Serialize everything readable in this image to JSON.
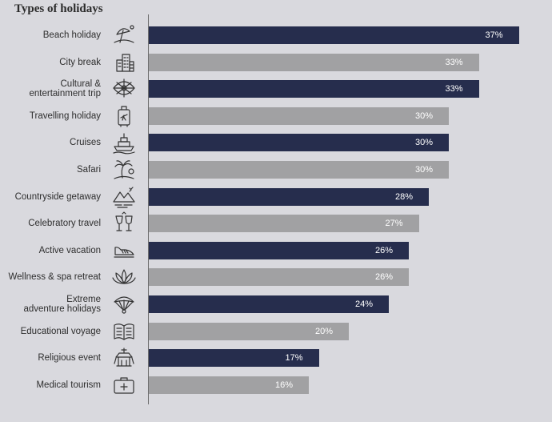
{
  "chart_data": {
    "type": "bar",
    "orientation": "horizontal",
    "title": "Types of holidays",
    "xlim": [
      0,
      40
    ],
    "grid": false,
    "legend": "none",
    "colors": {
      "dark": "#262d4d",
      "light": "#a1a1a3"
    },
    "categories": [
      {
        "label": "Beach holiday",
        "value": 37,
        "value_label": "37%",
        "shade": "dark",
        "icon": "beach-umbrella-icon"
      },
      {
        "label": "City break",
        "value": 33,
        "value_label": "33%",
        "shade": "light",
        "icon": "city-buildings-icon"
      },
      {
        "label": "Cultural &\nentertainment trip",
        "value": 33,
        "value_label": "33%",
        "shade": "dark",
        "icon": "fan-icon"
      },
      {
        "label": "Travelling holiday",
        "value": 30,
        "value_label": "30%",
        "shade": "light",
        "icon": "suitcase-icon"
      },
      {
        "label": "Cruises",
        "value": 30,
        "value_label": "30%",
        "shade": "dark",
        "icon": "cruise-ship-icon"
      },
      {
        "label": "Safari",
        "value": 30,
        "value_label": "30%",
        "shade": "light",
        "icon": "palm-tree-icon"
      },
      {
        "label": "Countryside getaway",
        "value": 28,
        "value_label": "28%",
        "shade": "dark",
        "icon": "mountains-icon"
      },
      {
        "label": "Celebratory travel",
        "value": 27,
        "value_label": "27%",
        "shade": "light",
        "icon": "champagne-glasses-icon"
      },
      {
        "label": "Active vacation",
        "value": 26,
        "value_label": "26%",
        "shade": "dark",
        "icon": "sneaker-icon"
      },
      {
        "label": "Wellness & spa retreat",
        "value": 26,
        "value_label": "26%",
        "shade": "light",
        "icon": "lotus-icon"
      },
      {
        "label": "Extreme\nadventure holidays",
        "value": 24,
        "value_label": "24%",
        "shade": "dark",
        "icon": "paraglider-icon"
      },
      {
        "label": "Educational voyage",
        "value": 20,
        "value_label": "20%",
        "shade": "light",
        "icon": "open-book-icon"
      },
      {
        "label": "Religious event",
        "value": 17,
        "value_label": "17%",
        "shade": "dark",
        "icon": "temple-icon"
      },
      {
        "label": "Medical tourism",
        "value": 16,
        "value_label": "16%",
        "shade": "light",
        "icon": "first-aid-kit-icon"
      }
    ]
  }
}
